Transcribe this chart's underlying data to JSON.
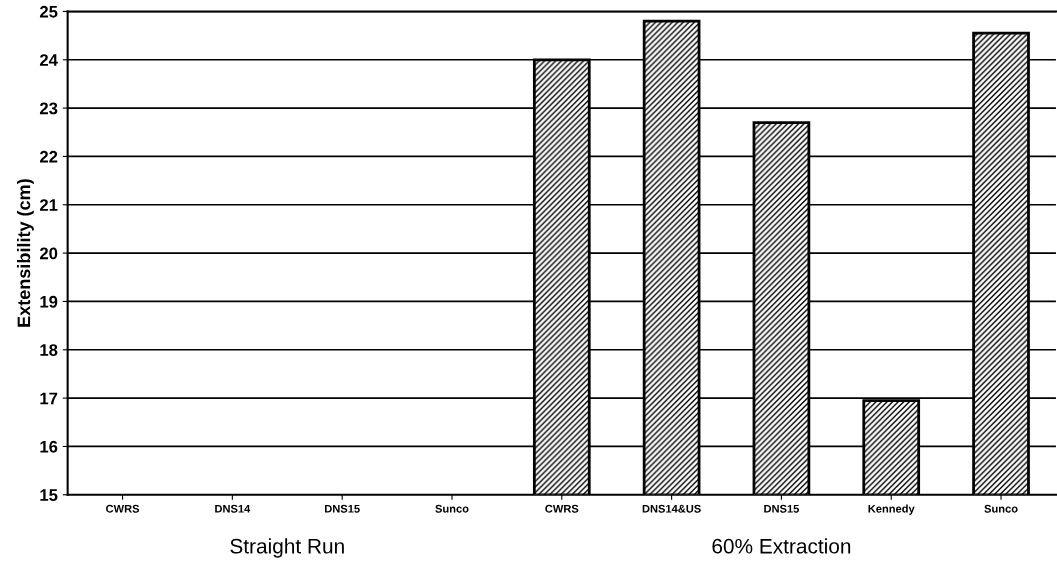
{
  "chart_data": {
    "type": "bar",
    "ylabel": "Extensibility (cm)",
    "categories": [
      "CWRS",
      "DNS14",
      "DNS15",
      "Sunco",
      "CWRS",
      "DNS14&US",
      "DNS15",
      "Kennedy",
      "Sunco"
    ],
    "values": [
      null,
      null,
      null,
      null,
      24.0,
      24.8,
      22.7,
      16.95,
      24.55
    ],
    "color": "#000000",
    "ylim": [
      15,
      25
    ],
    "yticks": [
      15,
      16,
      17,
      18,
      19,
      20,
      21,
      22,
      23,
      24,
      25
    ],
    "grid": "y",
    "annotations": [
      "Straight Run",
      "60% Extraction"
    ]
  }
}
